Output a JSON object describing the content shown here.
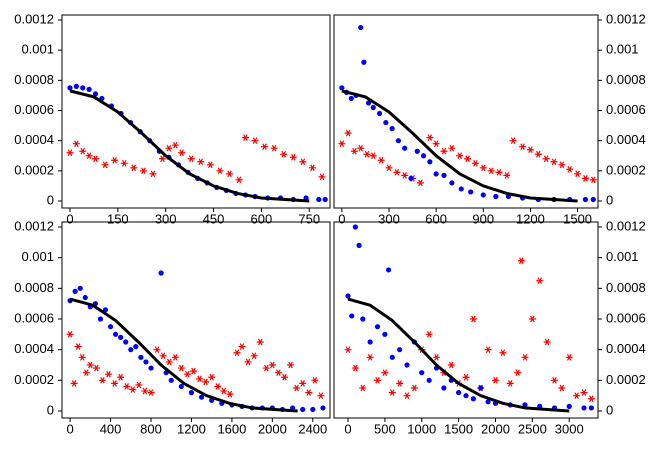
{
  "chart_data": [
    {
      "type": "scatter",
      "ytick_side": "left",
      "xlim": [
        -25,
        815
      ],
      "xticks": [
        0,
        150,
        300,
        450,
        600,
        750
      ],
      "ylim": [
        0,
        0.0012
      ],
      "yticks": [
        0,
        0.0002,
        0.0004,
        0.0006,
        0.0008,
        0.001,
        0.0012
      ],
      "series": [
        {
          "mode": "markers",
          "marker": "star",
          "color": "#ff0000",
          "x": [
            0,
            20,
            40,
            60,
            80,
            110,
            140,
            170,
            200,
            230,
            260,
            290,
            310,
            330,
            350,
            380,
            410,
            440,
            470,
            500,
            530,
            550,
            580,
            610,
            640,
            670,
            700,
            730,
            760,
            790
          ],
          "values": [
            0.00032,
            0.00038,
            0.00033,
            0.0003,
            0.00028,
            0.00024,
            0.00027,
            0.00025,
            0.00022,
            0.0002,
            0.00018,
            0.00028,
            0.00035,
            0.00037,
            0.00032,
            0.00028,
            0.00026,
            0.00024,
            0.0002,
            0.00018,
            0.00014,
            0.00042,
            0.0004,
            0.00036,
            0.00035,
            0.00031,
            0.00029,
            0.00026,
            0.00022,
            0.00016
          ]
        },
        {
          "mode": "markers",
          "marker": "circle",
          "color": "#0000ff",
          "x": [
            0,
            20,
            40,
            60,
            80,
            100,
            130,
            160,
            190,
            220,
            250,
            280,
            310,
            340,
            370,
            400,
            430,
            460,
            490,
            520,
            550,
            580,
            620,
            660,
            700,
            740,
            780,
            800
          ],
          "values": [
            0.00075,
            0.00076,
            0.00075,
            0.00074,
            0.00071,
            0.00068,
            0.00063,
            0.00058,
            0.00052,
            0.00046,
            0.0004,
            0.00033,
            0.00029,
            0.00024,
            0.00019,
            0.00015,
            0.00012,
            9e-05,
            7e-05,
            5e-05,
            4e-05,
            3e-05,
            2e-05,
            2e-05,
            1e-05,
            2e-05,
            1e-05,
            1e-05
          ]
        },
        {
          "mode": "line",
          "color": "#000000",
          "x": [
            0,
            75,
            150,
            225,
            300,
            375,
            450,
            525,
            600,
            675,
            750
          ],
          "values": [
            0.00073,
            0.00069,
            0.00059,
            0.00045,
            0.0003,
            0.00018,
            0.0001,
            5e-05,
            2e-05,
            1e-05,
            0
          ]
        }
      ]
    },
    {
      "type": "scatter",
      "ytick_side": "right",
      "xlim": [
        -50,
        1630
      ],
      "xticks": [
        0,
        300,
        600,
        900,
        1200,
        1500
      ],
      "ylim": [
        0,
        0.0012
      ],
      "yticks": [
        0,
        0.0002,
        0.0004,
        0.0006,
        0.0008,
        0.001,
        0.0012
      ],
      "series": [
        {
          "mode": "markers",
          "marker": "star",
          "color": "#ff0000",
          "x": [
            0,
            40,
            80,
            120,
            160,
            200,
            250,
            300,
            350,
            400,
            450,
            500,
            560,
            600,
            650,
            700,
            750,
            800,
            850,
            900,
            950,
            1000,
            1050,
            1090,
            1150,
            1200,
            1250,
            1300,
            1350,
            1400,
            1450,
            1500,
            1550,
            1600
          ],
          "values": [
            0.00038,
            0.00045,
            0.00033,
            0.00035,
            0.00031,
            0.0003,
            0.00027,
            0.00022,
            0.00019,
            0.00017,
            0.00015,
            0.00012,
            0.00042,
            0.00038,
            0.00033,
            0.00035,
            0.0003,
            0.00028,
            0.00025,
            0.00022,
            0.0002,
            0.00019,
            0.00017,
            0.0004,
            0.00036,
            0.00034,
            0.00031,
            0.00028,
            0.00026,
            0.00024,
            0.00021,
            0.00018,
            0.00015,
            0.00014
          ]
        },
        {
          "mode": "markers",
          "marker": "circle",
          "color": "#0000ff",
          "x": [
            0,
            30,
            60,
            90,
            120,
            140,
            170,
            200,
            240,
            280,
            320,
            360,
            400,
            440,
            480,
            520,
            560,
            600,
            650,
            700,
            760,
            820,
            900,
            980,
            1060,
            1150,
            1250,
            1350,
            1450,
            1550,
            1600
          ],
          "values": [
            0.00075,
            0.00072,
            0.00068,
            0.0007,
            0.00115,
            0.00092,
            0.00065,
            0.00062,
            0.00058,
            0.00052,
            0.00048,
            0.0004,
            0.00035,
            0.00015,
            0.00033,
            0.0003,
            0.00026,
            0.00018,
            0.00017,
            0.00012,
            8e-05,
            6e-05,
            4e-05,
            3e-05,
            3e-05,
            2e-05,
            1e-05,
            1e-05,
            1e-05,
            1e-05,
            1e-05
          ]
        },
        {
          "mode": "line",
          "color": "#000000",
          "x": [
            0,
            150,
            300,
            450,
            600,
            750,
            900,
            1050,
            1200,
            1350,
            1500
          ],
          "values": [
            0.00073,
            0.00069,
            0.00059,
            0.00045,
            0.0003,
            0.00018,
            0.0001,
            5e-05,
            2e-05,
            1e-05,
            0
          ]
        }
      ]
    },
    {
      "type": "scatter",
      "ytick_side": "left",
      "xlim": [
        -80,
        2570
      ],
      "xticks": [
        0,
        400,
        800,
        1200,
        1600,
        2000,
        2400
      ],
      "ylim": [
        0,
        0.0012
      ],
      "yticks": [
        0,
        0.0002,
        0.0004,
        0.0006,
        0.0008,
        0.001,
        0.0012
      ],
      "series": [
        {
          "mode": "markers",
          "marker": "star",
          "color": "#ff0000",
          "x": [
            0,
            40,
            80,
            120,
            160,
            200,
            260,
            320,
            380,
            440,
            500,
            560,
            620,
            680,
            740,
            800,
            860,
            920,
            980,
            1040,
            1100,
            1160,
            1220,
            1280,
            1340,
            1400,
            1460,
            1520,
            1580,
            1650,
            1700,
            1760,
            1820,
            1880,
            1940,
            2000,
            2060,
            2120,
            2180,
            2240,
            2300,
            2360,
            2420,
            2480
          ],
          "values": [
            0.0005,
            0.00018,
            0.00042,
            0.00035,
            0.00025,
            0.0003,
            0.00028,
            0.0002,
            0.00024,
            0.00018,
            0.00022,
            0.00016,
            0.00014,
            0.00017,
            0.00013,
            0.00012,
            0.0004,
            0.00036,
            0.00032,
            0.00035,
            0.00028,
            0.00024,
            0.00026,
            0.00021,
            0.00019,
            0.00022,
            0.00016,
            0.00013,
            0.00011,
            0.00038,
            0.00042,
            0.00032,
            0.00036,
            0.00045,
            0.00028,
            0.0003,
            0.00025,
            0.00022,
            0.0003,
            0.00015,
            0.00018,
            0.00012,
            0.0002,
            0.0001
          ]
        },
        {
          "mode": "markers",
          "marker": "circle",
          "color": "#0000ff",
          "x": [
            0,
            50,
            100,
            150,
            200,
            250,
            300,
            350,
            400,
            450,
            500,
            550,
            600,
            650,
            700,
            750,
            800,
            900,
            950,
            1000,
            1100,
            1200,
            1300,
            1400,
            1500,
            1600,
            1700,
            1800,
            1900,
            2000,
            2100,
            2200,
            2300,
            2400,
            2500
          ],
          "values": [
            0.00072,
            0.00078,
            0.0008,
            0.00074,
            0.00068,
            0.0007,
            0.0006,
            0.00066,
            0.00055,
            0.0005,
            0.00048,
            0.00045,
            0.0004,
            0.00042,
            0.00035,
            0.00032,
            0.00028,
            0.0009,
            0.00025,
            0.0002,
            0.00016,
            0.00012,
            9e-05,
            7e-05,
            5e-05,
            4e-05,
            3e-05,
            2e-05,
            2e-05,
            2e-05,
            1e-05,
            2e-05,
            1e-05,
            1e-05,
            2e-05
          ]
        },
        {
          "mode": "line",
          "color": "#000000",
          "x": [
            0,
            225,
            450,
            675,
            900,
            1125,
            1350,
            1575,
            1800,
            2025,
            2250
          ],
          "values": [
            0.00073,
            0.00069,
            0.00059,
            0.00045,
            0.0003,
            0.00018,
            0.0001,
            5e-05,
            2e-05,
            1e-05,
            0
          ]
        }
      ]
    },
    {
      "type": "scatter",
      "ytick_side": "right",
      "xlim": [
        -190,
        3390
      ],
      "xticks": [
        0,
        500,
        1000,
        1500,
        2000,
        2500,
        3000
      ],
      "ylim": [
        0,
        0.0012
      ],
      "yticks": [
        0,
        0.0002,
        0.0004,
        0.0006,
        0.0008,
        0.001,
        0.0012
      ],
      "series": [
        {
          "mode": "markers",
          "marker": "star",
          "color": "#ff0000",
          "x": [
            0,
            100,
            200,
            300,
            400,
            500,
            600,
            700,
            800,
            900,
            1000,
            1100,
            1200,
            1300,
            1400,
            1500,
            1600,
            1700,
            1800,
            1900,
            2000,
            2100,
            2200,
            2300,
            2350,
            2400,
            2500,
            2600,
            2700,
            2800,
            2900,
            3000,
            3100,
            3200,
            3300
          ],
          "values": [
            0.0004,
            0.00028,
            0.00015,
            0.00035,
            0.0002,
            0.00025,
            0.00012,
            0.00018,
            0.0001,
            0.00015,
            0.0004,
            0.0005,
            0.00035,
            0.00025,
            0.0003,
            0.00018,
            0.00022,
            0.0006,
            0.00015,
            0.0004,
            0.0002,
            0.00038,
            0.00018,
            0.00025,
            0.00098,
            0.00035,
            0.0006,
            0.00085,
            0.00045,
            0.0002,
            0.00015,
            0.00035,
            0.0001,
            0.00012,
            8e-05
          ]
        },
        {
          "mode": "markers",
          "marker": "circle",
          "color": "#0000ff",
          "x": [
            0,
            50,
            100,
            150,
            200,
            300,
            400,
            500,
            550,
            600,
            700,
            800,
            900,
            1000,
            1100,
            1200,
            1300,
            1400,
            1500,
            1600,
            1700,
            1800,
            1900,
            2000,
            2200,
            2400,
            2600,
            2800,
            3000,
            3200,
            3300
          ],
          "values": [
            0.00075,
            0.00062,
            0.0012,
            0.00108,
            0.0006,
            0.00045,
            0.00055,
            0.0005,
            0.00092,
            0.00035,
            0.0004,
            0.0003,
            0.00045,
            0.00025,
            0.0002,
            0.00028,
            0.00015,
            0.0002,
            0.00012,
            0.0001,
            8e-05,
            0.00015,
            6e-05,
            5e-05,
            4e-05,
            4e-05,
            3e-05,
            2e-05,
            3e-05,
            2e-05,
            2e-05
          ]
        },
        {
          "mode": "line",
          "color": "#000000",
          "x": [
            0,
            300,
            600,
            900,
            1200,
            1500,
            1800,
            2100,
            2400,
            2700,
            3000
          ],
          "values": [
            0.00073,
            0.00069,
            0.00059,
            0.00045,
            0.0003,
            0.00018,
            0.0001,
            5e-05,
            2e-05,
            1e-05,
            0
          ]
        }
      ]
    }
  ]
}
